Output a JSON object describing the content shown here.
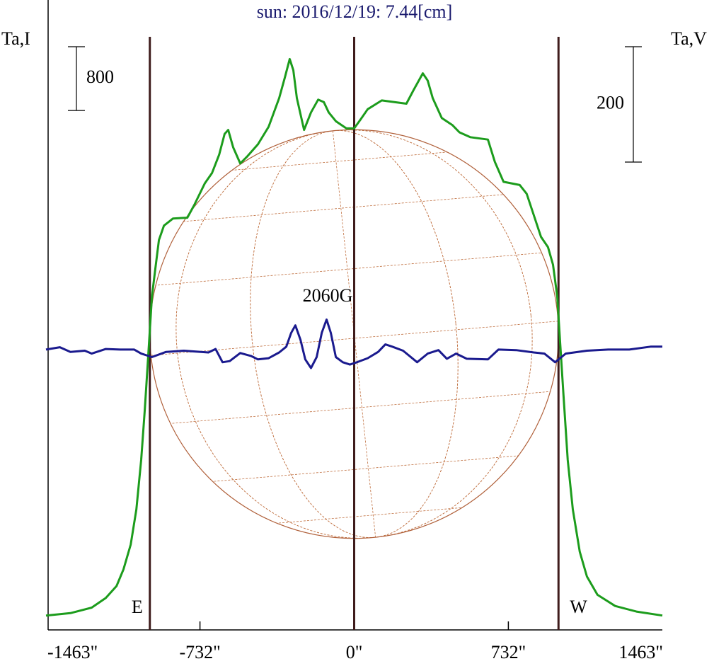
{
  "chart_data": {
    "type": "line",
    "title": "sun: 2016/12/19: 7.44[cm]",
    "ylabel": "Ta,I",
    "y2label": "Ta,V",
    "xlim": [
      -1463,
      1463
    ],
    "xticks": [
      {
        "value": -1463,
        "label": "-1463\""
      },
      {
        "value": -732,
        "label": "-732\""
      },
      {
        "value": 0,
        "label": "0\""
      },
      {
        "value": 732,
        "label": "732\""
      },
      {
        "value": 1463,
        "label": "1463\""
      }
    ],
    "ylim": [
      0,
      7900
    ],
    "y2lim": [
      -486,
      606
    ],
    "scale_bars": [
      {
        "value": 800,
        "axis": "y"
      },
      {
        "value": 200,
        "axis": "y2"
      }
    ],
    "vlines": [
      -970,
      0,
      970
    ],
    "annotations": [
      {
        "text": "2060G"
      },
      {
        "text": "E"
      },
      {
        "text": "W"
      }
    ],
    "series": [
      {
        "color": "#1c9c1c",
        "axis": "y",
        "x": [
          -1463,
          -1347,
          -1246,
          -1179,
          -1128,
          -1095,
          -1061,
          -1034,
          -1011,
          -994,
          -977,
          -960,
          -944,
          -927,
          -903,
          -860,
          -792,
          -759,
          -709,
          -675,
          -641,
          -615,
          -598,
          -574,
          -541,
          -507,
          -457,
          -406,
          -356,
          -329,
          -306,
          -289,
          -272,
          -238,
          -205,
          -171,
          -144,
          -121,
          -87,
          -37,
          0,
          30,
          64,
          131,
          248,
          282,
          326,
          349,
          373,
          416,
          467,
          500,
          551,
          635,
          668,
          709,
          786,
          819,
          853,
          887,
          920,
          944,
          964,
          977,
          994,
          1014,
          1038,
          1071,
          1105,
          1155,
          1239,
          1340,
          1463
        ],
        "values": [
          180,
          210,
          280,
          400,
          550,
          760,
          1070,
          1510,
          2130,
          2760,
          3470,
          4180,
          4530,
          4890,
          5070,
          5160,
          5170,
          5330,
          5600,
          5730,
          5960,
          6220,
          6270,
          6050,
          5850,
          5940,
          6090,
          6310,
          6670,
          6930,
          7160,
          7020,
          6670,
          6270,
          6490,
          6650,
          6620,
          6490,
          6380,
          6290,
          6290,
          6400,
          6530,
          6640,
          6600,
          6770,
          6980,
          6890,
          6670,
          6420,
          6330,
          6240,
          6180,
          6150,
          5870,
          5620,
          5580,
          5470,
          5200,
          4930,
          4800,
          4580,
          4180,
          3640,
          2930,
          2130,
          1510,
          980,
          670,
          440,
          300,
          230,
          180
        ]
      },
      {
        "color": "#1a1a8e",
        "axis": "y2",
        "x": [
          -1463,
          -1397,
          -1347,
          -1279,
          -1246,
          -1179,
          -1111,
          -1044,
          -1011,
          -960,
          -893,
          -809,
          -692,
          -658,
          -625,
          -591,
          -541,
          -490,
          -457,
          -406,
          -356,
          -322,
          -299,
          -279,
          -255,
          -232,
          -205,
          -178,
          -154,
          -131,
          -111,
          -87,
          -54,
          -20,
          13,
          64,
          114,
          148,
          181,
          232,
          299,
          349,
          400,
          440,
          484,
          534,
          635,
          685,
          769,
          853,
          903,
          954,
          1004,
          1105,
          1206,
          1306,
          1407,
          1463
        ],
        "values": [
          0,
          4,
          -4,
          -2,
          -7,
          1,
          0,
          0,
          -7,
          -13,
          -4,
          -2,
          -5,
          1,
          -22,
          -20,
          -6,
          -11,
          -17,
          -15,
          -5,
          5,
          29,
          42,
          17,
          -17,
          -32,
          -13,
          29,
          52,
          29,
          -13,
          -22,
          -26,
          -22,
          -15,
          -4,
          9,
          5,
          -2,
          -22,
          -7,
          -1,
          -16,
          -7,
          -16,
          -17,
          0,
          -1,
          -5,
          -7,
          -22,
          -7,
          -2,
          0,
          0,
          5,
          5
        ]
      }
    ]
  }
}
